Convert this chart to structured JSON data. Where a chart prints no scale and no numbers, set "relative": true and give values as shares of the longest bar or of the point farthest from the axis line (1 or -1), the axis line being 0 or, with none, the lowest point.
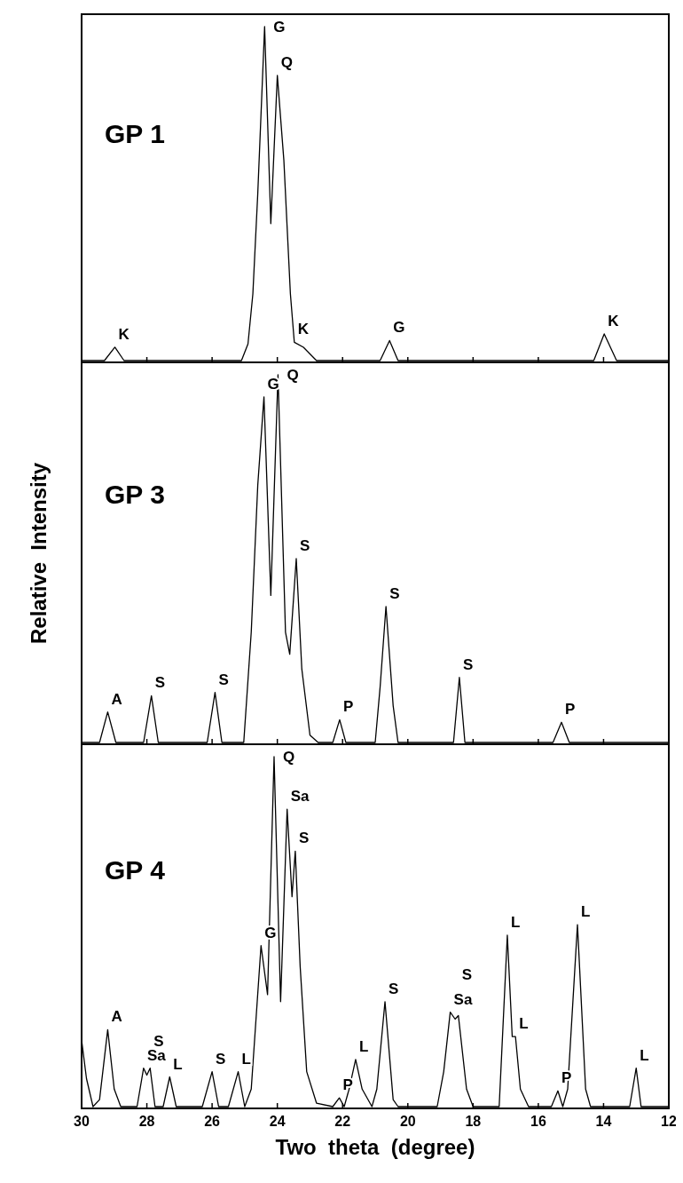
{
  "chart_data": [
    {
      "type": "line",
      "title": "GP 1",
      "relative": true,
      "color": "#000000",
      "xlim": [
        30,
        12
      ],
      "xticks": [
        30,
        28,
        26,
        24,
        22,
        20,
        18,
        16,
        14,
        12
      ],
      "tick_labels": false,
      "x": [
        30,
        29.3,
        28.98,
        28.7,
        25.1,
        24.9,
        24.75,
        24.6,
        24.39,
        24.2,
        24.0,
        23.8,
        23.6,
        23.48,
        23.2,
        22.8,
        20.85,
        20.56,
        20.3,
        14.3,
        13.98,
        13.6,
        12
      ],
      "values": [
        0,
        0,
        0.04,
        0,
        0,
        0.05,
        0.2,
        0.5,
        1,
        0.41,
        0.854,
        0.6,
        0.2,
        0.055,
        0.04,
        0,
        0,
        0.06,
        0,
        0,
        0.08,
        0,
        0
      ],
      "annotations": [
        {
          "text": "K",
          "x": 28.98,
          "y": 0.04
        },
        {
          "text": "G",
          "x": 24.39,
          "y": 1
        },
        {
          "text": "Q",
          "x": 24.0,
          "y": 0.854
        },
        {
          "text": "K",
          "x": 23.48,
          "y": 0.055
        },
        {
          "text": "G",
          "x": 20.56,
          "y": 0.06
        },
        {
          "text": "K",
          "x": 13.98,
          "y": 0.08
        }
      ]
    },
    {
      "type": "line",
      "title": "GP 3",
      "ylabel": "Relative  Intensity",
      "relative": true,
      "color": "#000000",
      "xlim": [
        30,
        12
      ],
      "xticks": [
        30,
        28,
        26,
        24,
        22,
        20,
        18,
        16,
        14,
        12
      ],
      "tick_labels": false,
      "x": [
        30,
        29.45,
        29.2,
        28.95,
        28.1,
        27.86,
        27.65,
        26.15,
        25.91,
        25.7,
        25.03,
        24.8,
        24.6,
        24.41,
        24.2,
        23.98,
        23.75,
        23.62,
        23.42,
        23.25,
        23.0,
        22.75,
        22.3,
        22.09,
        21.9,
        21.0,
        20.85,
        20.67,
        20.45,
        20.3,
        18.6,
        18.42,
        18.25,
        15.55,
        15.29,
        15.05,
        12
      ],
      "values": [
        0,
        0,
        0.083,
        0,
        0,
        0.127,
        0,
        0,
        0.136,
        0,
        0,
        0.3,
        0.7,
        0.94,
        0.4,
        1,
        0.3,
        0.24,
        0.5,
        0.2,
        0.02,
        0,
        0,
        0.062,
        0,
        0,
        0.15,
        0.37,
        0.1,
        0,
        0,
        0.177,
        0,
        0,
        0.055,
        0,
        0
      ],
      "annotations": [
        {
          "text": "A",
          "x": 29.2,
          "y": 0.083
        },
        {
          "text": "S",
          "x": 27.86,
          "y": 0.127
        },
        {
          "text": "S",
          "x": 25.91,
          "y": 0.136
        },
        {
          "text": "G",
          "x": 24.41,
          "y": 0.94
        },
        {
          "text": "Q",
          "x": 23.98,
          "y": 1
        },
        {
          "text": "S",
          "x": 23.42,
          "y": 0.5
        },
        {
          "text": "P",
          "x": 22.09,
          "y": 0.062
        },
        {
          "text": "S",
          "x": 20.67,
          "y": 0.37
        },
        {
          "text": "S",
          "x": 18.42,
          "y": 0.177
        },
        {
          "text": "P",
          "x": 15.29,
          "y": 0.055
        }
      ]
    },
    {
      "type": "line",
      "title": "GP 4",
      "xlabel": "Two  theta  (degree)",
      "relative": true,
      "color": "#000000",
      "xlim": [
        30,
        12
      ],
      "xticks": [
        30,
        28,
        26,
        24,
        22,
        20,
        18,
        16,
        14,
        12
      ],
      "tick_labels": "x",
      "x": [
        30,
        29.85,
        29.65,
        29.45,
        29.2,
        29.0,
        28.8,
        28.3,
        28.1,
        28.0,
        27.9,
        27.75,
        27.5,
        27.3,
        27.1,
        26.3,
        26.0,
        25.8,
        25.5,
        25.2,
        25.0,
        24.8,
        24.5,
        24.3,
        24.1,
        23.9,
        23.7,
        23.55,
        23.45,
        23.3,
        23.1,
        22.8,
        22.3,
        22.1,
        21.95,
        21.8,
        21.6,
        21.4,
        21.1,
        20.95,
        20.7,
        20.45,
        20.3,
        19.1,
        18.9,
        18.7,
        18.55,
        18.45,
        18.2,
        18.0,
        17.2,
        16.95,
        16.8,
        16.7,
        16.55,
        16.3,
        15.6,
        15.4,
        15.25,
        15.1,
        14.8,
        14.55,
        14.4,
        13.2,
        13.0,
        12.85,
        12
      ],
      "values": [
        0.19,
        0.08,
        0,
        0.02,
        0.22,
        0.05,
        0,
        0,
        0.11,
        0.09,
        0.11,
        0,
        0,
        0.085,
        0,
        0,
        0.1,
        0,
        0,
        0.1,
        0,
        0.05,
        0.46,
        0.32,
        1,
        0.3,
        0.85,
        0.6,
        0.73,
        0.4,
        0.1,
        0.01,
        0,
        0.025,
        0,
        0.05,
        0.135,
        0.05,
        0,
        0.05,
        0.3,
        0.02,
        0,
        0,
        0.1,
        0.27,
        0.25,
        0.26,
        0.05,
        0,
        0,
        0.49,
        0.2,
        0.2,
        0.05,
        0,
        0,
        0.045,
        0,
        0.05,
        0.52,
        0.05,
        0,
        0,
        0.11,
        0,
        0
      ],
      "annotations": [
        {
          "text": "A",
          "x": 29.2,
          "y": 0.22
        },
        {
          "text": "Sa",
          "x": 28.1,
          "y": 0.11
        },
        {
          "text": "S",
          "x": 27.9,
          "y": 0.11
        },
        {
          "text": "L",
          "x": 27.3,
          "y": 0.085
        },
        {
          "text": "S",
          "x": 26.0,
          "y": 0.1
        },
        {
          "text": "L",
          "x": 25.2,
          "y": 0.1
        },
        {
          "text": "G",
          "x": 24.5,
          "y": 0.46
        },
        {
          "text": "Q",
          "x": 24.1,
          "y": 1
        },
        {
          "text": "Sa",
          "x": 23.7,
          "y": 0.85
        },
        {
          "text": "S",
          "x": 23.45,
          "y": 0.73
        },
        {
          "text": "P",
          "x": 22.1,
          "y": 0.025
        },
        {
          "text": "L",
          "x": 21.6,
          "y": 0.135
        },
        {
          "text": "S",
          "x": 20.7,
          "y": 0.3
        },
        {
          "text": "Sa",
          "x": 18.7,
          "y": 0.27
        },
        {
          "text": "S",
          "x": 18.45,
          "y": 0.26
        },
        {
          "text": "L",
          "x": 16.95,
          "y": 0.49
        },
        {
          "text": "L",
          "x": 16.7,
          "y": 0.2
        },
        {
          "text": "P",
          "x": 15.4,
          "y": 0.045
        },
        {
          "text": "L",
          "x": 14.8,
          "y": 0.52
        },
        {
          "text": "L",
          "x": 13.0,
          "y": 0.11
        }
      ]
    }
  ]
}
